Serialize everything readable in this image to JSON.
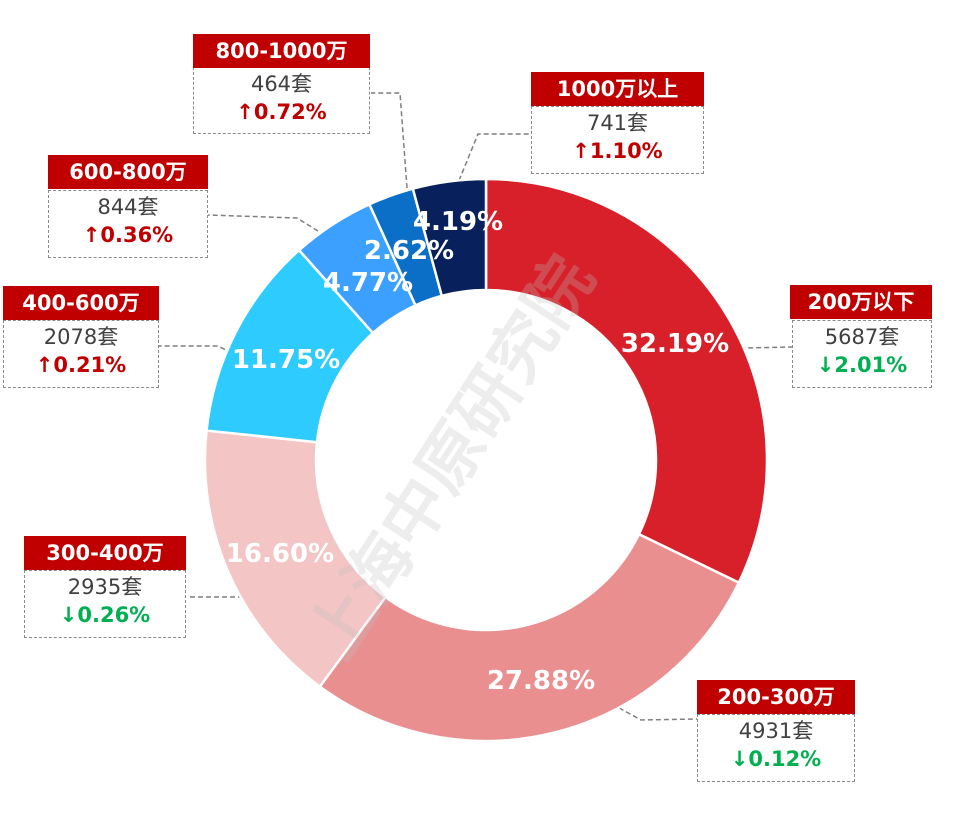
{
  "chart_data": {
    "type": "pie",
    "subtype": "donut",
    "slices": [
      {
        "label": "200万以下",
        "percent": 32.19,
        "count": "5687套",
        "change": "↓2.01%",
        "direction": "down",
        "color": "#d7202a"
      },
      {
        "label": "200-300万",
        "percent": 27.88,
        "count": "4931套",
        "change": "↓0.12%",
        "direction": "down",
        "color": "#ea8f8f"
      },
      {
        "label": "300-400万",
        "percent": 16.6,
        "count": "2935套",
        "change": "↓0.26%",
        "direction": "down",
        "color": "#f3c5c5"
      },
      {
        "label": "400-600万",
        "percent": 11.75,
        "count": "2078套",
        "change": "↑0.21%",
        "direction": "up",
        "color": "#2ecbff"
      },
      {
        "label": "600-800万",
        "percent": 4.77,
        "count": "844套",
        "change": "↑0.36%",
        "direction": "up",
        "color": "#3ba0ff"
      },
      {
        "label": "800-1000万",
        "percent": 2.62,
        "count": "464套",
        "change": "↑0.72%",
        "direction": "up",
        "color": "#0b6ec7"
      },
      {
        "label": "1000万以上",
        "percent": 4.19,
        "count": "741套",
        "change": "↑1.10%",
        "direction": "up",
        "color": "#08215c"
      }
    ],
    "percent_labels": [
      "32.19%",
      "27.88%",
      "16.60%",
      "11.75%",
      "4.77%",
      "2.62%",
      "4.19%"
    ]
  },
  "watermark": "上海中原研究院"
}
